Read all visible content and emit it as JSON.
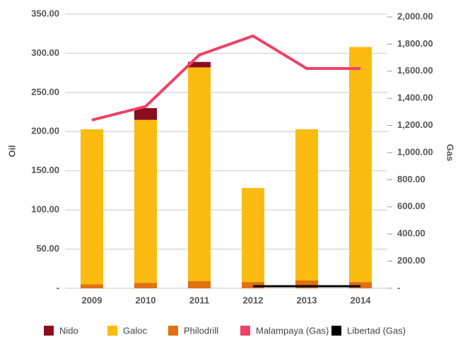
{
  "chart_data": {
    "type": "bar",
    "categories": [
      "2009",
      "2010",
      "2011",
      "2012",
      "2013",
      "2014"
    ],
    "y_label": "Oil",
    "y2_label": "Gas",
    "series": [
      {
        "name": "Nido",
        "color": "#8b0e1e",
        "values": [
          0,
          15,
          7,
          0,
          0,
          0
        ]
      },
      {
        "name": "Galoc",
        "color": "#fbbb10",
        "values": [
          198,
          208,
          273,
          120,
          193,
          300
        ]
      },
      {
        "name": "Philodrill",
        "color": "#e07010",
        "values": [
          5,
          7,
          9,
          8,
          10,
          8
        ]
      },
      {
        "name": "Malampaya (Gas)",
        "color": "#ee4266",
        "axis": "y2",
        "values": [
          1240,
          1340,
          1720,
          1860,
          1620,
          1620
        ]
      },
      {
        "name": "Libertad (Gas)",
        "color": "#000000",
        "axis": "y2",
        "values": [
          null,
          null,
          null,
          15,
          15,
          15
        ]
      }
    ],
    "ylim": [
      0,
      350
    ],
    "yticks": [
      {
        "value": 0,
        "label": "-"
      },
      {
        "value": 50,
        "label": "50.00"
      },
      {
        "value": 100,
        "label": "100.00"
      },
      {
        "value": 150,
        "label": "150.00"
      },
      {
        "value": 200,
        "label": "200.00"
      },
      {
        "value": 250,
        "label": "250.00"
      },
      {
        "value": 300,
        "label": "300.00"
      },
      {
        "value": 350,
        "label": "350.00"
      }
    ],
    "y2lim": [
      0,
      2000
    ],
    "y2ticks": [
      {
        "value": 0,
        "label": "-"
      },
      {
        "value": 200,
        "label": "200.00"
      },
      {
        "value": 400,
        "label": "400.00"
      },
      {
        "value": 600,
        "label": "600.00"
      },
      {
        "value": 800,
        "label": "800.00"
      },
      {
        "value": 1000,
        "label": "1,000.00"
      },
      {
        "value": 1200,
        "label": "1,200.00"
      },
      {
        "value": 1400,
        "label": "1,400.00"
      },
      {
        "value": 1600,
        "label": "1,600.00"
      },
      {
        "value": 1800,
        "label": "1,800.00"
      },
      {
        "value": 2000,
        "label": "2,000.00"
      }
    ],
    "grid": true,
    "legend": "bottom"
  }
}
